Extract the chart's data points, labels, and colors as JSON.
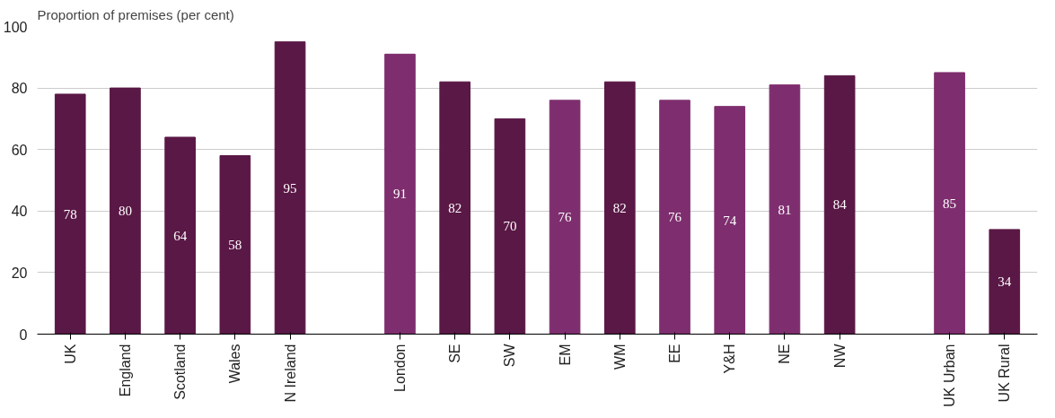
{
  "chart_data": {
    "type": "bar",
    "ylabel": "Proportion of premises (per cent)",
    "categories": [
      "UK",
      "England",
      "Scotland",
      "Wales",
      "N Ireland",
      null,
      "London",
      "SE",
      "SW",
      "EM",
      "WM",
      "EE",
      "Y&H",
      "NE",
      "NW",
      null,
      "UK Urban",
      "UK Rural"
    ],
    "values": [
      78,
      80,
      64,
      58,
      95,
      null,
      91,
      82,
      70,
      76,
      82,
      76,
      74,
      81,
      84,
      null,
      85,
      34
    ],
    "colors": [
      "#5a1846",
      "#5a1846",
      "#5a1846",
      "#5a1846",
      "#5a1846",
      null,
      "#7e2e6e",
      "#5a1846",
      "#5a1846",
      "#7e2e6e",
      "#5a1846",
      "#7e2e6e",
      "#7e2e6e",
      "#7e2e6e",
      "#5a1846",
      null,
      "#7e2e6e",
      "#5a1846"
    ],
    "ylim": [
      0,
      100
    ],
    "yticks": [
      0,
      20,
      40,
      60,
      80,
      100
    ],
    "grid": "y",
    "data_labels": true
  }
}
